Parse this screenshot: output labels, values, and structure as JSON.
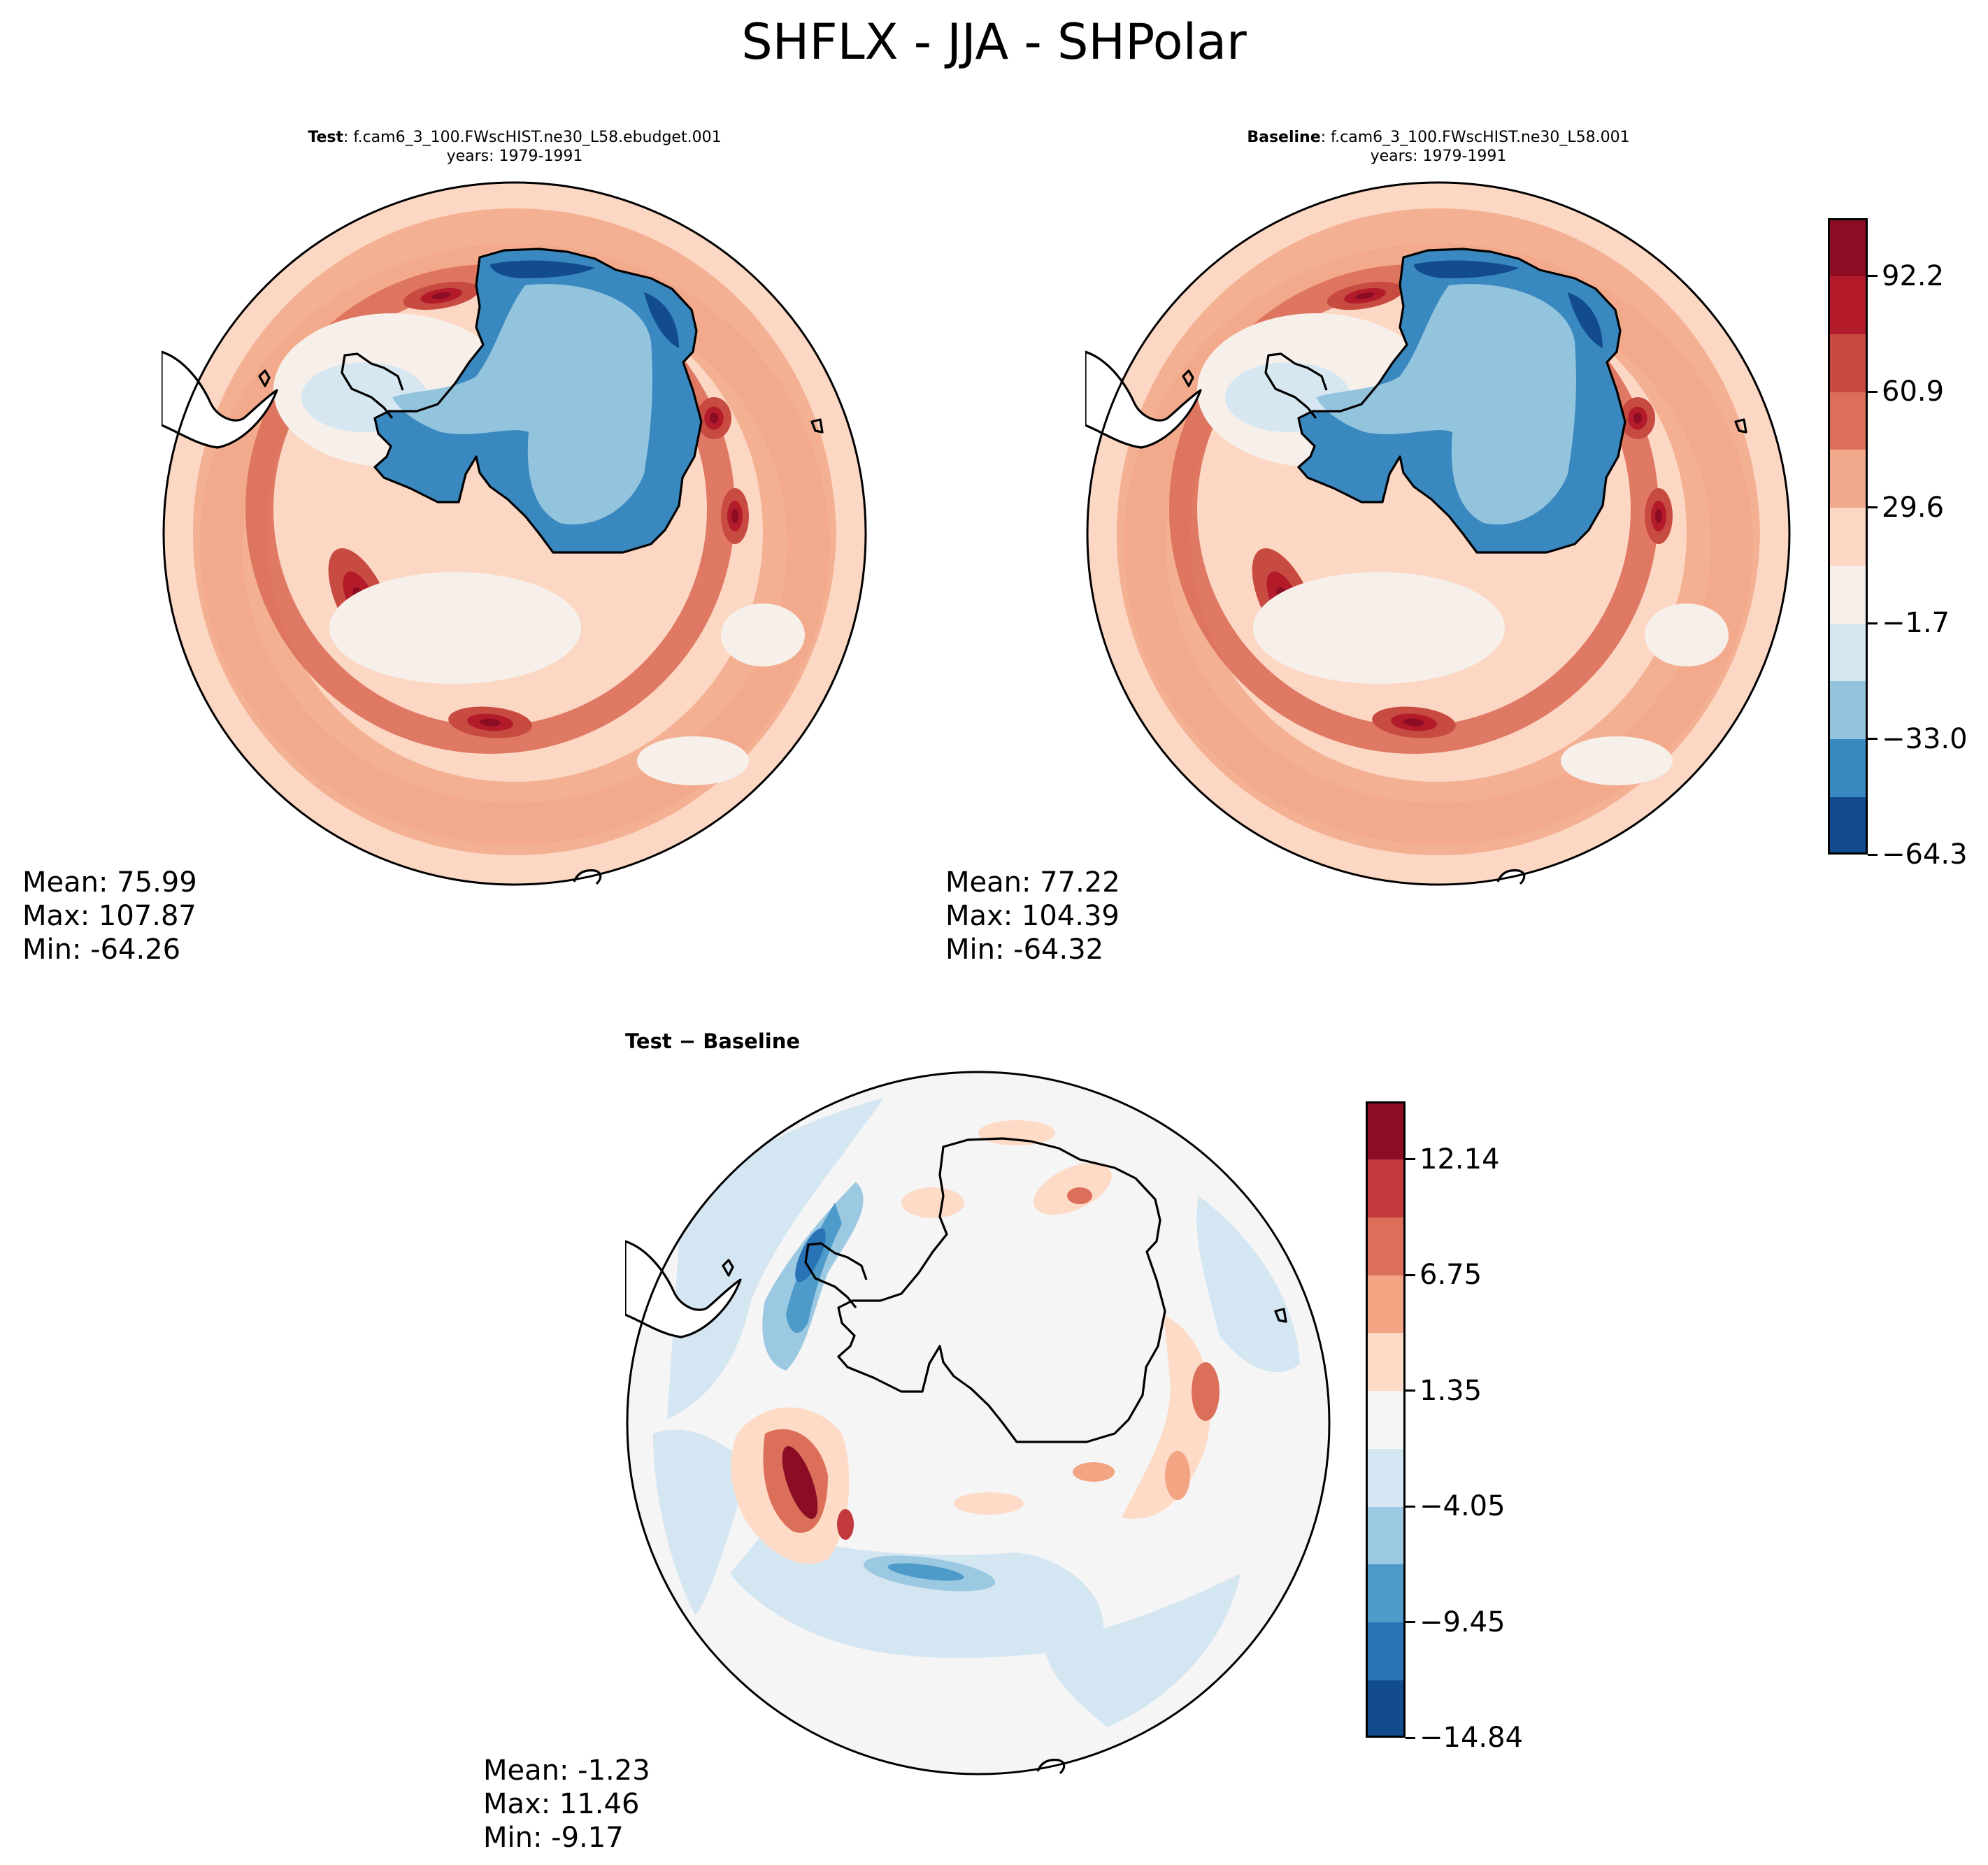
{
  "figure": {
    "suptitle": "SHFLX - JJA - SHPolar"
  },
  "colors": {
    "main_levels": [
      "#124c8e",
      "#3a88c0",
      "#93c4de",
      "#d6e7f1",
      "#f6efea",
      "#fcd7c3",
      "#f2a98b",
      "#dc6f5a",
      "#c84b42",
      "#b31b2b",
      "#8c0c24"
    ],
    "diff_levels": [
      "#124c8e",
      "#2a73b6",
      "#4e9bca",
      "#9cc9e2",
      "#d4e6f1",
      "#f5f5f5",
      "#fddbc7",
      "#f3a482",
      "#dc6f5a",
      "#c23a3e",
      "#8a0c25"
    ],
    "coast": "#000000"
  },
  "panels": {
    "test": {
      "label": "Test",
      "case": ": f.cam6_3_100.FWscHIST.ne30_L58.ebudget.001",
      "years": "years: 1979-1991",
      "mean": "Mean: 75.99",
      "max": "Max: 107.87",
      "min": "Min: -64.26"
    },
    "baseline": {
      "label": "Baseline",
      "case": ": f.cam6_3_100.FWscHIST.ne30_L58.001",
      "years": "years: 1979-1991",
      "mean": "Mean: 77.22",
      "max": "Max: 104.39",
      "min": "Min: -64.32"
    },
    "diff": {
      "title": "Test − Baseline",
      "mean": "Mean: -1.23",
      "max": "Max: 11.46",
      "min": "Min: -9.17"
    }
  },
  "chart_data": [
    {
      "type": "heatmap",
      "name": "Test",
      "projection": "south-polar-stereographic",
      "variable": "SHFLX",
      "season": "JJA",
      "stats": {
        "mean": 75.99,
        "max": 107.87,
        "min": -64.26
      },
      "colorbar_ticks": [
        "92.2",
        "60.9",
        "29.6",
        "−1.7",
        "−33.0",
        "−64.3"
      ]
    },
    {
      "type": "heatmap",
      "name": "Baseline",
      "projection": "south-polar-stereographic",
      "variable": "SHFLX",
      "season": "JJA",
      "stats": {
        "mean": 77.22,
        "max": 104.39,
        "min": -64.32
      },
      "colorbar_range": [
        -64.3,
        107.9
      ],
      "colorbar_ticks": [
        "92.2",
        "60.9",
        "29.6",
        "−1.7",
        "−33.0",
        "−64.3"
      ]
    },
    {
      "type": "heatmap",
      "name": "Test − Baseline",
      "projection": "south-polar-stereographic",
      "variable": "SHFLX",
      "season": "JJA",
      "stats": {
        "mean": -1.23,
        "max": 11.46,
        "min": -9.17
      },
      "colorbar_range": [
        -14.84,
        14.84
      ],
      "colorbar_ticks": [
        "12.14",
        "6.75",
        "1.35",
        "−4.05",
        "−9.45",
        "−14.84"
      ]
    }
  ]
}
